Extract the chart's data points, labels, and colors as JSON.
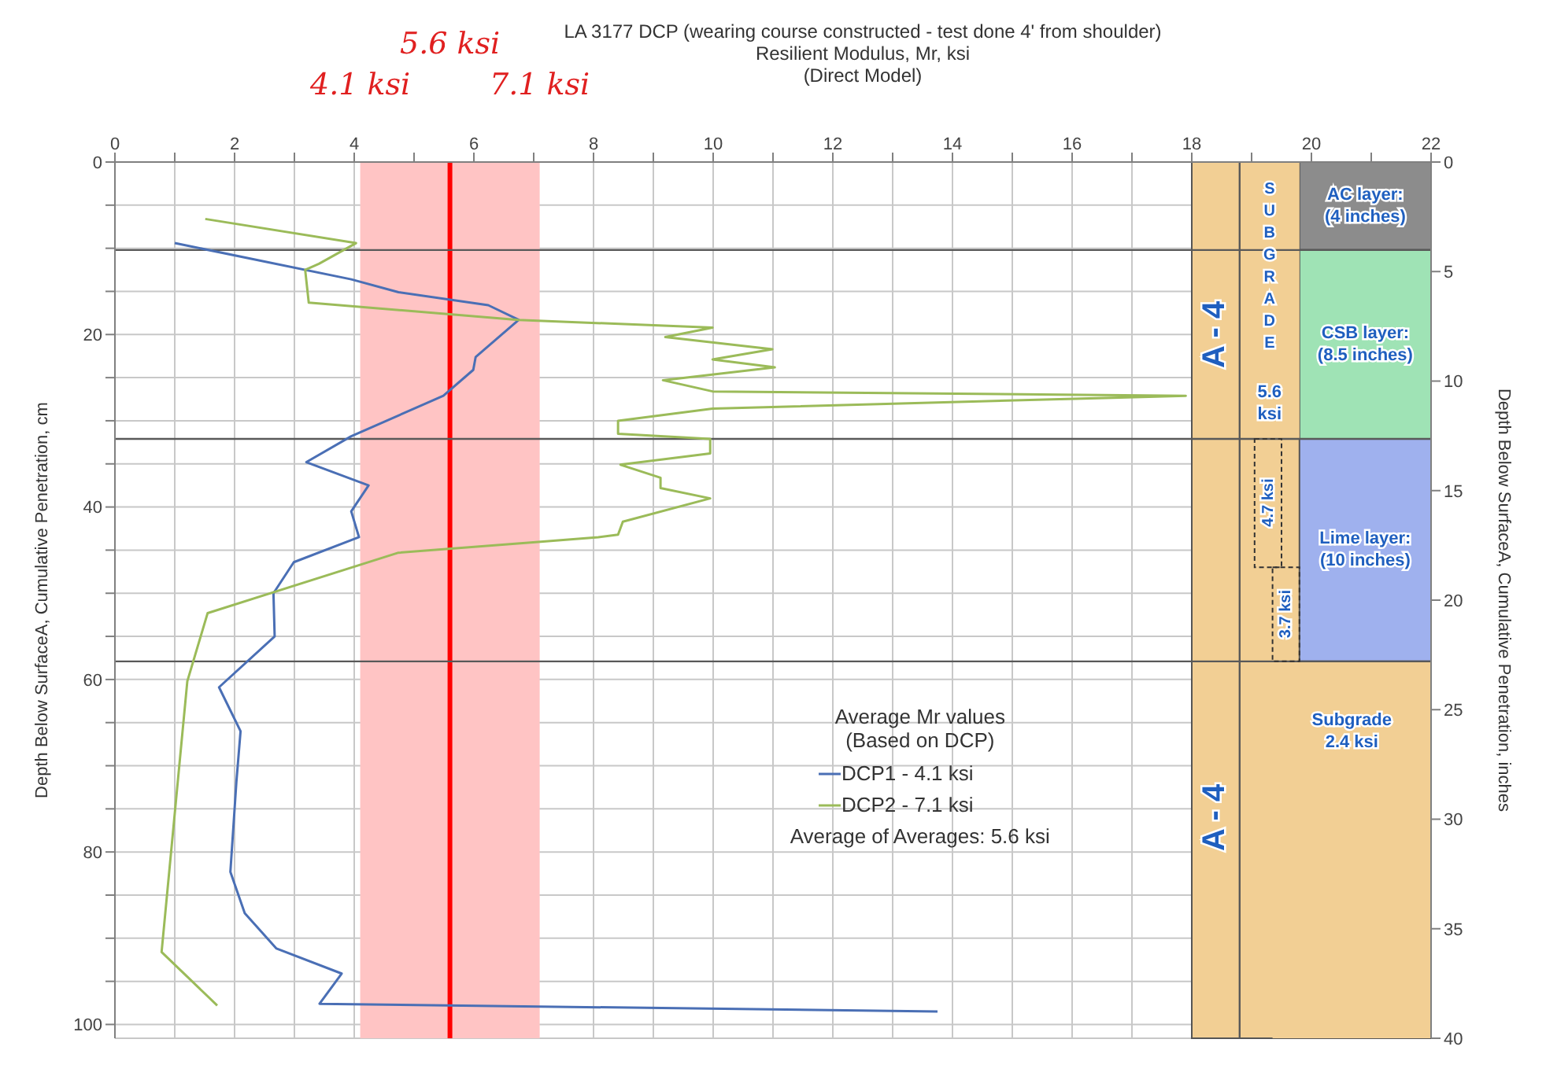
{
  "chart_data": {
    "type": "line",
    "title": "LA 3177 DCP (wearing course constructed - test done 4' from shoulder)",
    "xlabel": "Resilient Modulus, Mr, ksi",
    "ylabel": "Depth Below SurfaceA, Cumulative Penetration, cm",
    "y2label": "Depth Below SurfaceA, Cumulative Penetration, inches",
    "legend_title": "Average Mr values\n(Based on DCP)",
    "legend": "right",
    "grid": true,
    "marker": "none",
    "line_style": "solid",
    "xlim": [
      0,
      22
    ],
    "xticks": [
      0,
      {
        "value": 1,
        "label": null
      },
      2,
      {
        "value": 3,
        "label": null
      },
      4,
      {
        "value": 5,
        "label": null
      },
      6,
      {
        "value": 7,
        "label": null
      },
      8,
      {
        "value": 9,
        "label": null
      },
      10,
      {
        "value": 11,
        "label": null
      },
      12,
      {
        "value": 13,
        "label": null
      },
      14,
      {
        "value": 15,
        "label": null
      },
      16,
      {
        "value": 17,
        "label": null
      },
      18,
      {
        "value": 19,
        "label": null
      },
      20,
      {
        "value": 21,
        "label": null
      },
      22
    ],
    "ylim": [
      101.6,
      0
    ],
    "yticks": [
      0,
      {
        "value": 5,
        "label": null
      },
      {
        "value": 10,
        "label": null
      },
      {
        "value": 15,
        "label": null
      },
      20,
      {
        "value": 25,
        "label": null
      },
      {
        "value": 30,
        "label": null
      },
      {
        "value": 35,
        "label": null
      },
      40,
      {
        "value": 45,
        "label": null
      },
      {
        "value": 50,
        "label": null
      },
      {
        "value": 55,
        "label": null
      },
      60,
      {
        "value": 65,
        "label": null
      },
      {
        "value": 70,
        "label": null
      },
      {
        "value": 75,
        "label": null
      },
      80,
      {
        "value": 85,
        "label": null
      },
      {
        "value": 90,
        "label": null
      },
      {
        "value": 95,
        "label": null
      },
      100
    ],
    "y2lim": [
      40,
      0
    ],
    "y2ticks": [
      0,
      5,
      10,
      15,
      20,
      25,
      30,
      35,
      40
    ],
    "series": [
      {
        "name": "DCP1 - 4.1 ksi",
        "color": "#4a6fb5",
        "x": [
          1.0,
          3.95,
          4.74,
          6.24,
          6.75,
          6.03,
          5.99,
          5.49,
          3.95,
          3.2,
          4.24,
          3.95,
          4.08,
          2.99,
          2.65,
          2.67,
          1.74,
          2.1,
          2.03,
          1.93,
          2.17,
          2.7,
          3.79,
          3.42,
          13.75
        ],
        "values": [
          9.4,
          13.6,
          15.1,
          16.6,
          18.3,
          22.6,
          24.1,
          27.1,
          31.8,
          34.8,
          37.5,
          40.5,
          43.5,
          46.4,
          50,
          55,
          60.9,
          66,
          71.9,
          82.3,
          87.1,
          91.2,
          94.1,
          97.6,
          98.5
        ]
      },
      {
        "name": "DCP2 - 7.1 ksi",
        "color": "#9bbb59",
        "x": [
          1.51,
          4.03,
          3.41,
          3.18,
          3.24,
          6.74,
          9.99,
          9.2,
          10.99,
          9.99,
          11.03,
          9.16,
          9.99,
          17.9,
          9.99,
          8.41,
          8.41,
          9.95,
          9.95,
          8.45,
          9.12,
          9.12,
          9.95,
          8.49,
          8.41,
          8.08,
          6.99,
          4.74,
          1.55,
          1.21,
          0.78,
          1.71
        ],
        "values": [
          6.6,
          9.4,
          11.8,
          12.5,
          16.3,
          18.3,
          19.2,
          20.3,
          21.7,
          22.9,
          23.8,
          25.3,
          26.6,
          27.1,
          28.6,
          30.0,
          31.5,
          32.1,
          33.8,
          35.1,
          36.6,
          37.8,
          39.0,
          41.7,
          43.2,
          43.5,
          44.1,
          45.3,
          52.3,
          60.2,
          91.6,
          97.8
        ]
      }
    ],
    "bands": [
      {
        "axis": "x",
        "from": 4.1,
        "to": 7.1,
        "color": "#ffc4c4"
      },
      {
        "axis": "y",
        "from": 0,
        "to": 101.6,
        "color": "#f2cf94"
      },
      {
        "axis": "y",
        "from": 0,
        "to": 10.2,
        "color": "#8c8c8c",
        "label": "AC layer:\n(4 inches)"
      },
      {
        "axis": "y",
        "from": 10.2,
        "to": 32.1,
        "color": "#9fe3b5",
        "label": "CSB layer:\n(8.5 inches)"
      },
      {
        "axis": "y",
        "from": 32.1,
        "to": 57.9,
        "color": "#9fb1ee",
        "label": "Lime layer:\n(10 inches)"
      },
      {
        "axis": "y",
        "from": 57.9,
        "to": 101.6,
        "color": "#f2cf94",
        "label": "Subgrade\n2.4 ksi"
      },
      {
        "axis": "y",
        "from": 0,
        "to": 32.1,
        "color": "#f2cf94",
        "label": "5.6\nksi"
      }
    ],
    "ref_lines": [
      {
        "axis": "x",
        "value": 5.6,
        "label": "5.6 ksi",
        "color": "#ff0000"
      },
      {
        "axis": "x",
        "value": 18.8,
        "color": "#595959"
      },
      {
        "axis": "y",
        "value": 10.2,
        "color": "#595959"
      },
      {
        "axis": "y",
        "value": 32.1,
        "color": "#595959"
      },
      {
        "axis": "y",
        "value": 57.9,
        "color": "#595959"
      }
    ],
    "annotations": [
      "(Direct Model)",
      "4.1 ksi",
      "7.1 ksi",
      "Average of Averages: 5.6 ksi",
      "SUBGRADE",
      "A - 4",
      "A - 4",
      "4.7 ksi",
      "3.7 ksi"
    ]
  }
}
